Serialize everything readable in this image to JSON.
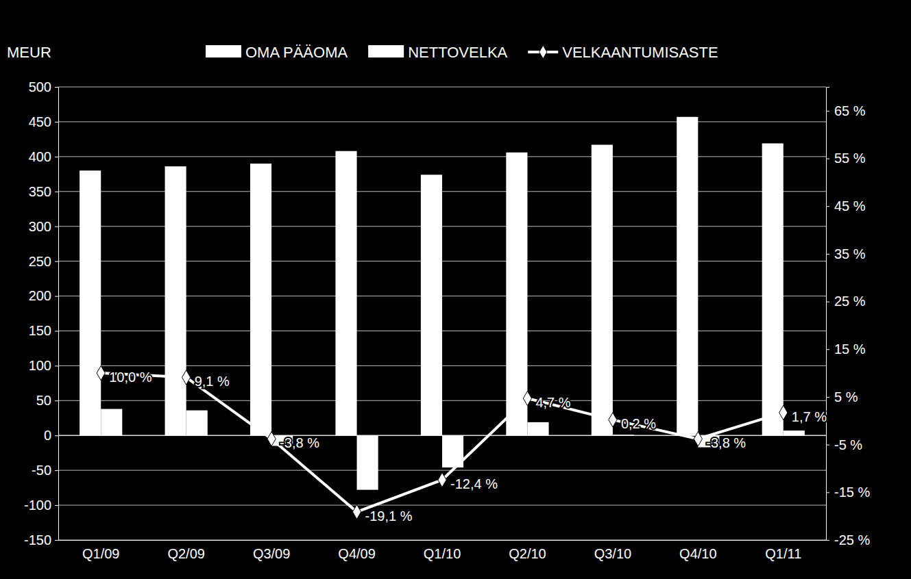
{
  "chart_data": {
    "type": "bar",
    "ylabel": "MEUR",
    "categories": [
      "Q1/09",
      "Q2/09",
      "Q3/09",
      "Q4/09",
      "Q1/10",
      "Q2/10",
      "Q3/10",
      "Q4/10",
      "Q1/11"
    ],
    "series": [
      {
        "name": "OMA PÄÄOMA",
        "type": "bar",
        "color": "#ffffff",
        "values": [
          380,
          386,
          390,
          408,
          374,
          406,
          417,
          457,
          419
        ]
      },
      {
        "name": "NETTOVELKA",
        "type": "bar",
        "color": "#ffffff",
        "values": [
          38,
          36,
          -15,
          -78,
          -46,
          19,
          1,
          -17,
          7
        ]
      },
      {
        "name": "VELKAANTUMISASTE",
        "type": "line",
        "axis": "y2",
        "color": "#ffffff",
        "marker": "diamond",
        "values": [
          10.0,
          9.1,
          -3.8,
          -19.1,
          -12.4,
          4.7,
          0.2,
          -3.8,
          1.7
        ],
        "value_labels": [
          "10,0 %",
          "9,1 %",
          "-3,8 %",
          "-19,1 %",
          "-12,4 %",
          "4,7 %",
          "0,2 %",
          "-3,8 %",
          "1,7 %"
        ]
      }
    ],
    "ylim": [
      -150,
      500
    ],
    "yticks": [
      -150,
      -100,
      -50,
      0,
      50,
      100,
      150,
      200,
      250,
      300,
      350,
      400,
      450,
      500
    ],
    "y2lim": [
      -25,
      70
    ],
    "y2ticks": [
      {
        "value": -25,
        "label": "-25 %"
      },
      {
        "value": -15,
        "label": "-15 %"
      },
      {
        "value": -5,
        "label": "-5 %"
      },
      {
        "value": 5,
        "label": "5 %"
      },
      {
        "value": 15,
        "label": "15 %"
      },
      {
        "value": 25,
        "label": "25 %"
      },
      {
        "value": 35,
        "label": "35 %"
      },
      {
        "value": 45,
        "label": "45 %"
      },
      {
        "value": 55,
        "label": "55 %"
      },
      {
        "value": 65,
        "label": "65 %"
      }
    ],
    "grid": true,
    "legend": "top",
    "data_labels": true
  }
}
